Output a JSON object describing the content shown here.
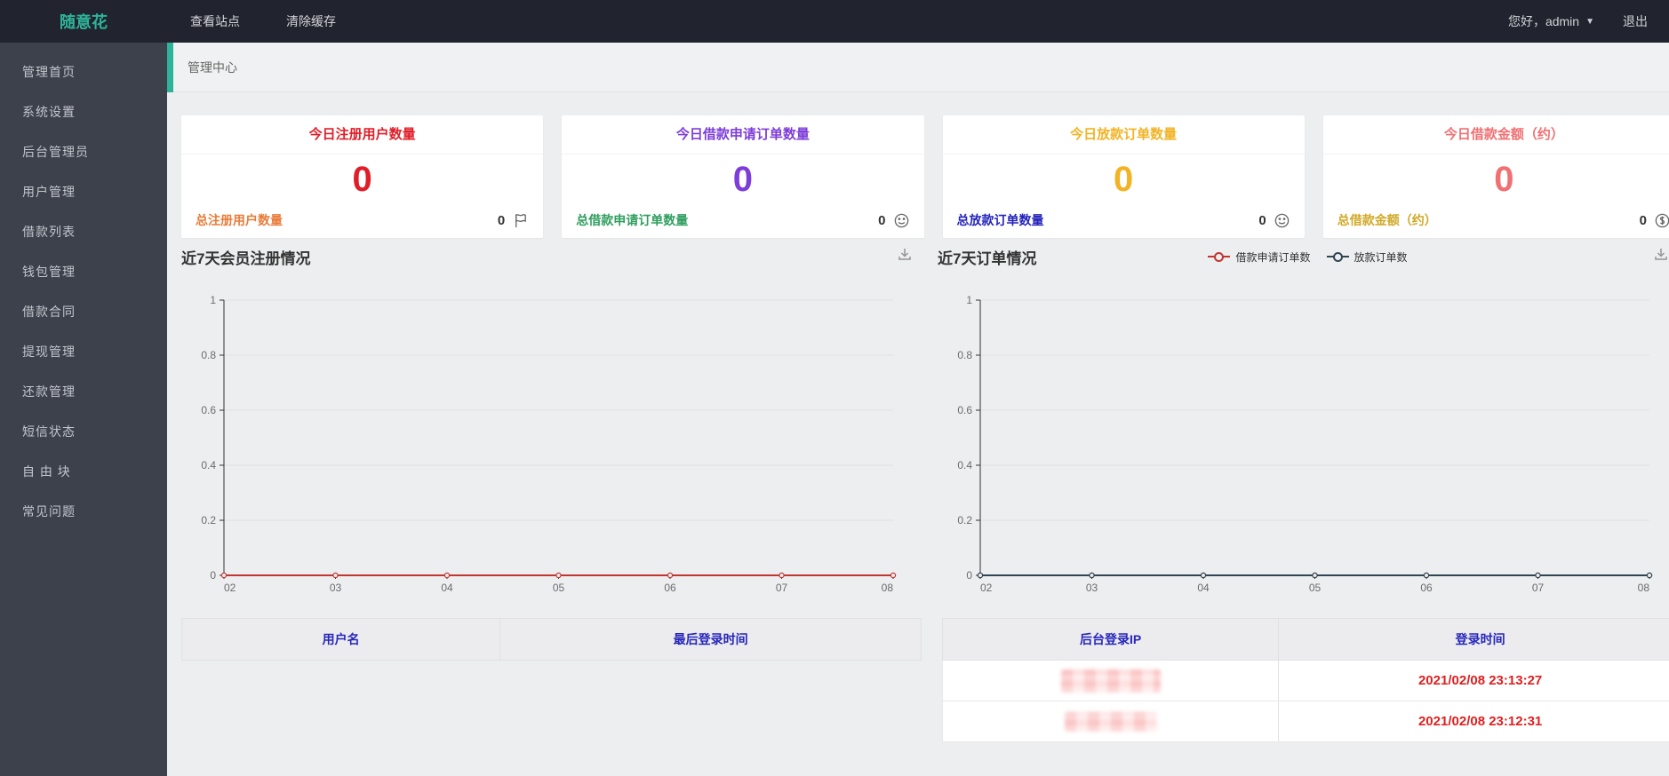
{
  "topbar": {
    "logo": "随意花",
    "nav": [
      {
        "label": "查看站点"
      },
      {
        "label": "清除缓存"
      }
    ],
    "greeting": "您好，admin",
    "logout_label": "退出"
  },
  "sidebar": {
    "items": [
      {
        "label": "管理首页"
      },
      {
        "label": "系统设置"
      },
      {
        "label": "后台管理员"
      },
      {
        "label": "用户管理"
      },
      {
        "label": "借款列表"
      },
      {
        "label": "钱包管理"
      },
      {
        "label": "借款合同"
      },
      {
        "label": "提现管理"
      },
      {
        "label": "还款管理"
      },
      {
        "label": "短信状态"
      },
      {
        "label": "自 由 块"
      },
      {
        "label": "常见问题"
      }
    ]
  },
  "tabbar": {
    "active_tab": "管理中心",
    "accent_color": "#2eb39a"
  },
  "stats": [
    {
      "title": "今日注册用户数量",
      "value": "0",
      "accent": "#e01e28",
      "footer_label": "总注册用户数量",
      "footer_color": "#e87c3a",
      "footer_value": "0",
      "icon": "flag-icon"
    },
    {
      "title": "今日借款申请订单数量",
      "value": "0",
      "accent": "#7d3dd8",
      "footer_label": "总借款申请订单数量",
      "footer_color": "#2f9e5f",
      "footer_value": "0",
      "icon": "smiley-icon"
    },
    {
      "title": "今日放款订单数量",
      "value": "0",
      "accent": "#f2b324",
      "footer_label": "总放款订单数量",
      "footer_color": "#2323bd",
      "footer_value": "0",
      "icon": "smiley-icon"
    },
    {
      "title": "今日借款金额（约）",
      "value": "0",
      "accent": "#ef7173",
      "footer_label": "总借款金额（约）",
      "footer_color": "#d0a928",
      "footer_value": "0",
      "icon": "dollar-circle-icon"
    }
  ],
  "chart_data": [
    {
      "type": "line",
      "title": "近7天会员注册情况",
      "x": [
        "02",
        "03",
        "04",
        "05",
        "06",
        "07",
        "08"
      ],
      "series": [
        {
          "values": [
            0,
            0,
            0,
            0,
            0,
            0,
            0
          ],
          "color": "#c23531",
          "symbol": "empty-circle"
        }
      ],
      "ylim": [
        0,
        1
      ],
      "yticks": [
        "0",
        "0.2",
        "0.4",
        "0.6",
        "0.8",
        "1"
      ],
      "grid": true,
      "legend": [],
      "toolbox": [
        "save-as-image"
      ]
    },
    {
      "type": "line",
      "title": "近7天订单情况",
      "x": [
        "02",
        "03",
        "04",
        "05",
        "06",
        "07",
        "08"
      ],
      "series": [
        {
          "name": "借款申请订单数",
          "values": [
            0,
            0,
            0,
            0,
            0,
            0,
            0
          ],
          "color": "#c23531",
          "symbol": "empty-circle"
        },
        {
          "name": "放款订单数",
          "values": [
            0,
            0,
            0,
            0,
            0,
            0,
            0
          ],
          "color": "#2f4554",
          "symbol": "empty-circle"
        }
      ],
      "ylim": [
        0,
        1
      ],
      "yticks": [
        "0",
        "0.2",
        "0.4",
        "0.6",
        "0.8",
        "1"
      ],
      "grid": true,
      "legend_position": "top-center",
      "toolbox": [
        "save-as-image"
      ]
    }
  ],
  "tables": {
    "users": {
      "headers": [
        "用户名",
        "最后登录时间"
      ],
      "rows": []
    },
    "logins": {
      "headers": [
        "后台登录IP",
        "登录时间"
      ],
      "rows": [
        {
          "ip_redacted": true,
          "time": "2021/02/08 23:13:27"
        },
        {
          "ip_redacted": true,
          "time": "2021/02/08 23:12:31"
        }
      ]
    }
  }
}
